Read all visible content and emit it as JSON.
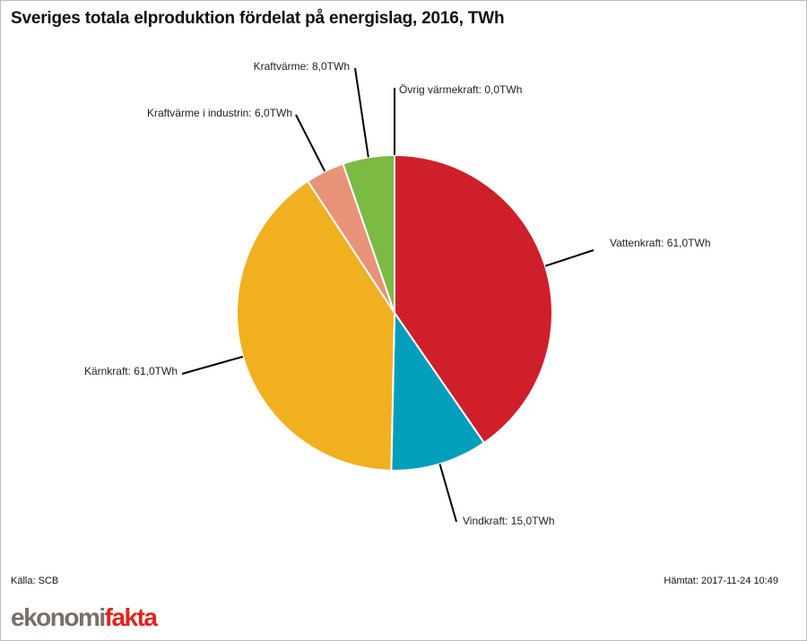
{
  "chart_data": {
    "type": "pie",
    "title": "Sveriges totala elproduktion fördelat på energislag, 2016, TWh",
    "unit": "TWh",
    "slices": [
      {
        "name": "Vattenkraft",
        "value": 61.0,
        "label": "Vattenkraft: 61,0TWh",
        "color": "#cf1f2a"
      },
      {
        "name": "Vindkraft",
        "value": 15.0,
        "label": "Vindkraft: 15,0TWh",
        "color": "#049ebd"
      },
      {
        "name": "Kärnkraft",
        "value": 61.0,
        "label": "Kärnkraft: 61,0TWh",
        "color": "#f0b020"
      },
      {
        "name": "Kraftvärme i industrin",
        "value": 6.0,
        "label": "Kraftvärme i industrin: 6,0TWh",
        "color": "#e89377"
      },
      {
        "name": "Kraftvärme",
        "value": 8.0,
        "label": "Kraftvärme: 8,0TWh",
        "color": "#7bba43"
      },
      {
        "name": "Övrig värmekraft",
        "value": 0.0,
        "label": "Övrig värmekraft: 0,0TWh",
        "color": "#999999"
      }
    ]
  },
  "footer": {
    "source": "Källa: SCB",
    "fetched": "Hämtat: 2017-11-24 10:49"
  },
  "logo": {
    "part1": "ekonomi",
    "part2": "fakta"
  }
}
